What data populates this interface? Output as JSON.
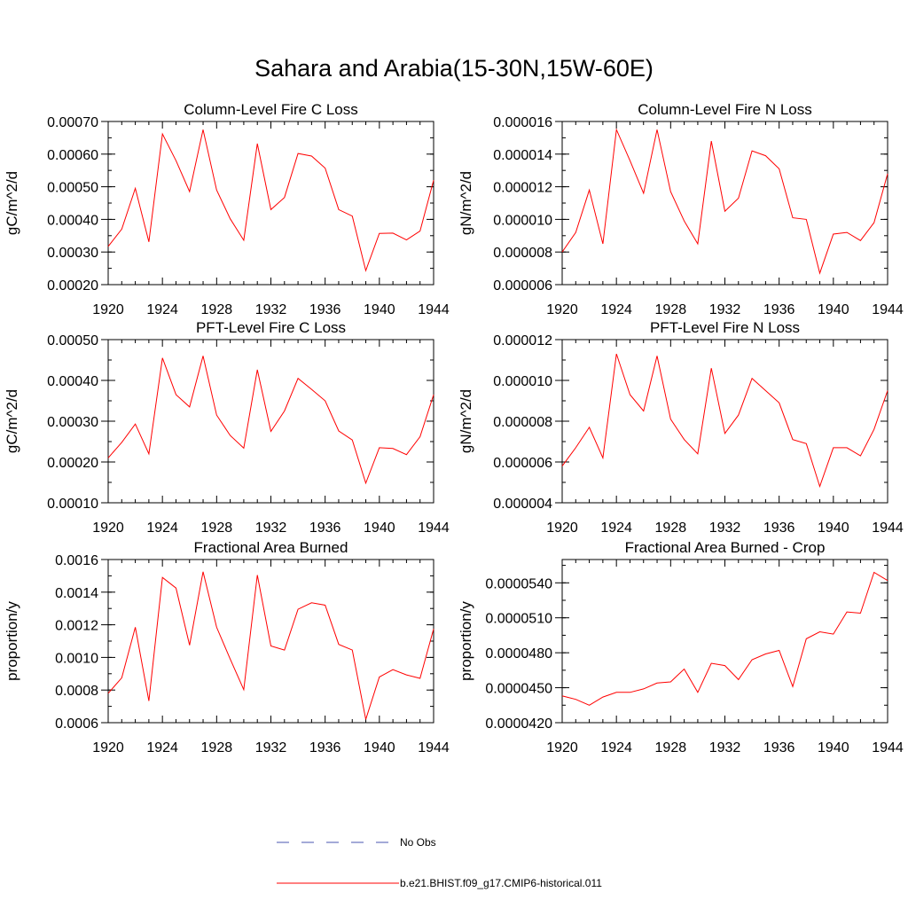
{
  "title": "Sahara and Arabia(15-30N,15W-60E)",
  "colors": {
    "model_line": "#ff0000",
    "obs_line": "#4a55b0",
    "axis": "#000000"
  },
  "legend": {
    "entries": [
      {
        "label": "No Obs",
        "style": "dashed",
        "color": "#4a55b0"
      },
      {
        "label": "b.e21.BHIST.f09_g17.CMIP6-historical.011",
        "style": "solid",
        "color": "#ff0000"
      }
    ]
  },
  "chart_data": [
    {
      "type": "line",
      "title": "Column-Level Fire C Loss",
      "ylabel": "gC/m^2/d",
      "xlabel": "",
      "xlim": [
        1920,
        1944
      ],
      "ylim": [
        0.0002,
        0.0007
      ],
      "xticks": [
        "1920",
        "1924",
        "1928",
        "1932",
        "1936",
        "1940",
        "1944"
      ],
      "yticks": [
        "0.00020",
        "0.00030",
        "0.00040",
        "0.00050",
        "0.00060",
        "0.00070"
      ],
      "yminor": 5e-05,
      "x": [
        1920,
        1921,
        1922,
        1923,
        1924,
        1925,
        1926,
        1927,
        1928,
        1929,
        1930,
        1931,
        1932,
        1933,
        1934,
        1935,
        1936,
        1937,
        1938,
        1939,
        1940,
        1941,
        1942,
        1943,
        1944
      ],
      "series": [
        {
          "values": [
            0.000317,
            0.00037,
            0.000495,
            0.000331,
            0.000662,
            0.00058,
            0.000485,
            0.000675,
            0.00049,
            0.000402,
            0.000336,
            0.000632,
            0.00043,
            0.000467,
            0.000602,
            0.000594,
            0.000557,
            0.00043,
            0.00041,
            0.000243,
            0.000357,
            0.000358,
            0.000337,
            0.000364,
            0.00052
          ]
        }
      ]
    },
    {
      "type": "line",
      "title": "Column-Level Fire N Loss",
      "ylabel": "gN/m^2/d",
      "xlabel": "",
      "xlim": [
        1920,
        1944
      ],
      "ylim": [
        6e-06,
        1.6e-05
      ],
      "xticks": [
        "1920",
        "1924",
        "1928",
        "1932",
        "1936",
        "1940",
        "1944"
      ],
      "yticks": [
        "0.000006",
        "0.000008",
        "0.000010",
        "0.000012",
        "0.000014",
        "0.000016"
      ],
      "yminor": 1e-06,
      "x": [
        1920,
        1921,
        1922,
        1923,
        1924,
        1925,
        1926,
        1927,
        1928,
        1929,
        1930,
        1931,
        1932,
        1933,
        1934,
        1935,
        1936,
        1937,
        1938,
        1939,
        1940,
        1941,
        1942,
        1943,
        1944
      ],
      "series": [
        {
          "values": [
            8e-06,
            9.2e-06,
            1.18e-05,
            8.5e-06,
            1.55e-05,
            1.36e-05,
            1.16e-05,
            1.55e-05,
            1.17e-05,
            9.9e-06,
            8.5e-06,
            1.48e-05,
            1.05e-05,
            1.13e-05,
            1.42e-05,
            1.39e-05,
            1.31e-05,
            1.01e-05,
            1e-05,
            6.7e-06,
            9.1e-06,
            9.2e-06,
            8.7e-06,
            9.8e-06,
            1.28e-05
          ]
        }
      ]
    },
    {
      "type": "line",
      "title": "PFT-Level Fire C Loss",
      "ylabel": "gC/m^2/d",
      "xlabel": "",
      "xlim": [
        1920,
        1944
      ],
      "ylim": [
        0.0001,
        0.0005
      ],
      "xticks": [
        "1920",
        "1924",
        "1928",
        "1932",
        "1936",
        "1940",
        "1944"
      ],
      "yticks": [
        "0.00010",
        "0.00020",
        "0.00030",
        "0.00040",
        "0.00050"
      ],
      "yminor": 5e-05,
      "x": [
        1920,
        1921,
        1922,
        1923,
        1924,
        1925,
        1926,
        1927,
        1928,
        1929,
        1930,
        1931,
        1932,
        1933,
        1934,
        1935,
        1936,
        1937,
        1938,
        1939,
        1940,
        1941,
        1942,
        1943,
        1944
      ],
      "series": [
        {
          "values": [
            0.00021,
            0.000248,
            0.000293,
            0.00022,
            0.000455,
            0.000365,
            0.000335,
            0.00046,
            0.000315,
            0.000265,
            0.000234,
            0.000426,
            0.000275,
            0.000325,
            0.000405,
            0.000378,
            0.00035,
            0.000276,
            0.000254,
            0.000148,
            0.000235,
            0.000233,
            0.000218,
            0.000262,
            0.000365
          ]
        }
      ]
    },
    {
      "type": "line",
      "title": "PFT-Level Fire N Loss",
      "ylabel": "gN/m^2/d",
      "xlabel": "",
      "xlim": [
        1920,
        1944
      ],
      "ylim": [
        4e-06,
        1.2e-05
      ],
      "xticks": [
        "1920",
        "1924",
        "1928",
        "1932",
        "1936",
        "1940",
        "1944"
      ],
      "yticks": [
        "0.000004",
        "0.000006",
        "0.000008",
        "0.000010",
        "0.000012"
      ],
      "yminor": 1e-06,
      "x": [
        1920,
        1921,
        1922,
        1923,
        1924,
        1925,
        1926,
        1927,
        1928,
        1929,
        1930,
        1931,
        1932,
        1933,
        1934,
        1935,
        1936,
        1937,
        1938,
        1939,
        1940,
        1941,
        1942,
        1943,
        1944
      ],
      "series": [
        {
          "values": [
            5.8e-06,
            6.7e-06,
            7.7e-06,
            6.2e-06,
            1.13e-05,
            9.3e-06,
            8.5e-06,
            1.12e-05,
            8.1e-06,
            7.1e-06,
            6.4e-06,
            1.06e-05,
            7.4e-06,
            8.3e-06,
            1.01e-05,
            9.5e-06,
            8.9e-06,
            7.1e-06,
            6.9e-06,
            4.8e-06,
            6.7e-06,
            6.7e-06,
            6.3e-06,
            7.6e-06,
            9.5e-06
          ]
        }
      ]
    },
    {
      "type": "line",
      "title": "Fractional Area Burned",
      "ylabel": "proportion/y",
      "xlabel": "",
      "xlim": [
        1920,
        1944
      ],
      "ylim": [
        0.0006,
        0.0016
      ],
      "xticks": [
        "1920",
        "1924",
        "1928",
        "1932",
        "1936",
        "1940",
        "1944"
      ],
      "yticks": [
        "0.0006",
        "0.0008",
        "0.0010",
        "0.0012",
        "0.0014",
        "0.0016"
      ],
      "yminor": 0.0001,
      "x": [
        1920,
        1921,
        1922,
        1923,
        1924,
        1925,
        1926,
        1927,
        1928,
        1929,
        1930,
        1931,
        1932,
        1933,
        1934,
        1935,
        1936,
        1937,
        1938,
        1939,
        1940,
        1941,
        1942,
        1943,
        1944
      ],
      "series": [
        {
          "values": [
            0.00078,
            0.000875,
            0.001185,
            0.000733,
            0.00149,
            0.001425,
            0.001075,
            0.001525,
            0.001185,
            0.00099,
            0.000802,
            0.001505,
            0.00107,
            0.001045,
            0.001295,
            0.001335,
            0.00132,
            0.00108,
            0.001045,
            0.00062,
            0.00088,
            0.000925,
            0.000893,
            0.000872,
            0.001175
          ]
        }
      ]
    },
    {
      "type": "line",
      "title": "Fractional Area Burned - Crop",
      "ylabel": "proportion/y",
      "xlabel": "",
      "xlim": [
        1920,
        1944
      ],
      "ylim": [
        4.2e-05,
        5.6e-05
      ],
      "xticks": [
        "1920",
        "1924",
        "1928",
        "1932",
        "1936",
        "1940",
        "1944"
      ],
      "yticks": [
        "0.0000420",
        "0.0000450",
        "0.0000480",
        "0.0000510",
        "0.0000540"
      ],
      "yminor": 1.5e-06,
      "x": [
        1920,
        1921,
        1922,
        1923,
        1924,
        1925,
        1926,
        1927,
        1928,
        1929,
        1930,
        1931,
        1932,
        1933,
        1934,
        1935,
        1936,
        1937,
        1938,
        1939,
        1940,
        1941,
        1942,
        1943,
        1944
      ],
      "series": [
        {
          "values": [
            4.43e-05,
            4.4e-05,
            4.35e-05,
            4.42e-05,
            4.46e-05,
            4.46e-05,
            4.49e-05,
            4.54e-05,
            4.55e-05,
            4.66e-05,
            4.46e-05,
            4.71e-05,
            4.69e-05,
            4.57e-05,
            4.74e-05,
            4.79e-05,
            4.82e-05,
            4.51e-05,
            4.92e-05,
            4.98e-05,
            4.96e-05,
            5.15e-05,
            5.14e-05,
            5.49e-05,
            5.42e-05
          ]
        }
      ]
    }
  ]
}
